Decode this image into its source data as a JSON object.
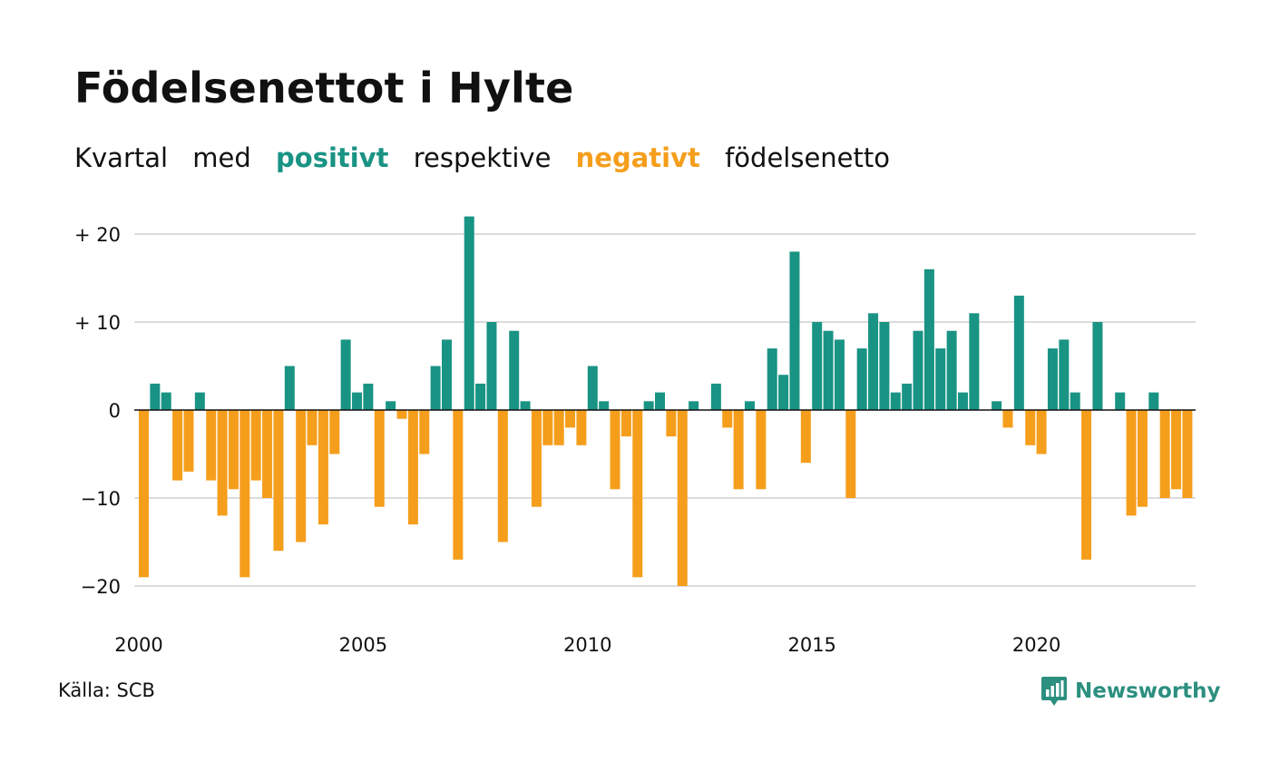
{
  "title": "Födelsenettot i Hylte",
  "subtitle": {
    "part1": "Kvartal",
    "part2": "med",
    "positive_word": "positivt",
    "part3": "respektive",
    "negative_word": "negativt",
    "part4": "födelsenetto"
  },
  "colors": {
    "positive": "#199384",
    "negative": "#f59e1c",
    "grid": "#dcdcdc",
    "axis": "#111111",
    "logo": "#2c8f7f"
  },
  "source": "Källa: SCB",
  "logo_text": "Newsworthy",
  "logo_icon": "newsworthy-chart-bubble-icon",
  "chart_data": {
    "type": "bar",
    "title": "Födelsenettot i Hylte",
    "xlabel": "",
    "ylabel": "",
    "ylim": [
      -20,
      22
    ],
    "grid": true,
    "yticks": [
      {
        "value": 20,
        "label": "+ 20"
      },
      {
        "value": 10,
        "label": "+ 10"
      },
      {
        "value": 0,
        "label": "0"
      },
      {
        "value": -10,
        "label": "−10"
      },
      {
        "value": -20,
        "label": "−20"
      }
    ],
    "xticks": [
      "2000",
      "2005",
      "2010",
      "2015",
      "2020"
    ],
    "x_start": "2000 Q1",
    "values": [
      -19,
      3,
      2,
      -8,
      -7,
      2,
      -8,
      -12,
      -9,
      -19,
      -8,
      -10,
      -16,
      5,
      -15,
      -4,
      -13,
      -5,
      8,
      2,
      3,
      -11,
      1,
      -1,
      -13,
      -5,
      5,
      8,
      -17,
      22,
      3,
      10,
      -15,
      9,
      1,
      -11,
      -4,
      -4,
      -2,
      -4,
      5,
      1,
      -9,
      -3,
      -19,
      1,
      2,
      -3,
      -20,
      1,
      0,
      3,
      -2,
      -9,
      1,
      -9,
      7,
      4,
      18,
      -6,
      10,
      9,
      8,
      -10,
      7,
      11,
      10,
      2,
      3,
      9,
      16,
      7,
      9,
      2,
      11,
      0,
      1,
      -2,
      13,
      -4,
      -5,
      7,
      8,
      2,
      -17,
      10,
      0,
      2,
      -12,
      -11,
      2,
      -10,
      -9,
      -10
    ]
  }
}
